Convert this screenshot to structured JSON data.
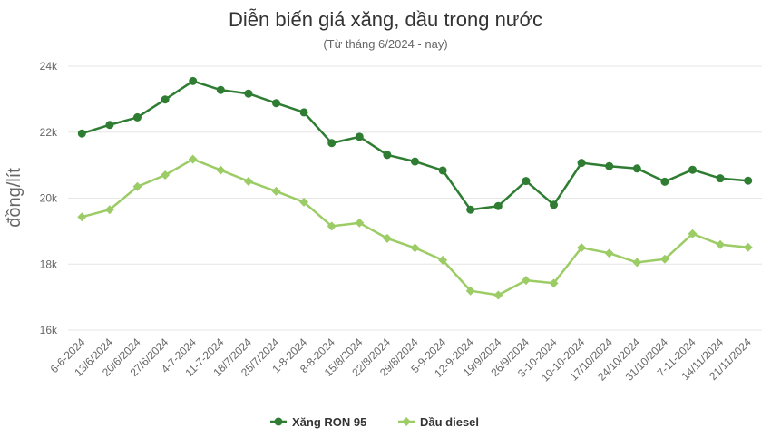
{
  "chart_data": {
    "type": "line",
    "title": "Diễn biến giá xăng, dầu trong nước",
    "subtitle": "(Từ tháng 6/2024 - nay)",
    "ylabel": "đồng/lít",
    "xlabel": "",
    "ylim": [
      16000,
      24000
    ],
    "yticks": [
      16000,
      18000,
      20000,
      22000,
      24000
    ],
    "ytick_labels": [
      "16k",
      "18k",
      "20k",
      "22k",
      "24k"
    ],
    "grid": true,
    "legend_position": "bottom-center",
    "categories": [
      "6-6-2024",
      "13/6/2024",
      "20/6/2024",
      "27/6/2024",
      "4-7-2024",
      "11-7-2024",
      "18/7/2024",
      "25/7/2024",
      "1-8-2024",
      "8-8-2024",
      "15/8/2024",
      "22/8/2024",
      "29/8/2024",
      "5-9-2024",
      "12-9-2024",
      "19/9/2024",
      "26/9/2024",
      "3-10-2024",
      "10-10-2024",
      "17/10/2024",
      "24/10/2024",
      "31/10/2024",
      "7-11-2024",
      "14/11/2024",
      "21/11/2024"
    ],
    "series": [
      {
        "name": "Xăng RON 95",
        "color": "#2e7d32",
        "marker": "circle",
        "values": [
          21960,
          22220,
          22450,
          22990,
          23550,
          23280,
          23170,
          22880,
          22600,
          21670,
          21860,
          21310,
          21110,
          20840,
          19650,
          19760,
          20520,
          19800,
          21070,
          20970,
          20900,
          20500,
          20860,
          20600,
          20530
        ]
      },
      {
        "name": "Dầu diesel",
        "color": "#9ccc65",
        "marker": "diamond",
        "values": [
          19430,
          19650,
          20350,
          20700,
          21180,
          20850,
          20510,
          20210,
          19880,
          19150,
          19250,
          18780,
          18490,
          18120,
          17190,
          17060,
          17510,
          17420,
          18500,
          18330,
          18050,
          18150,
          18920,
          18590,
          18510
        ]
      }
    ]
  }
}
